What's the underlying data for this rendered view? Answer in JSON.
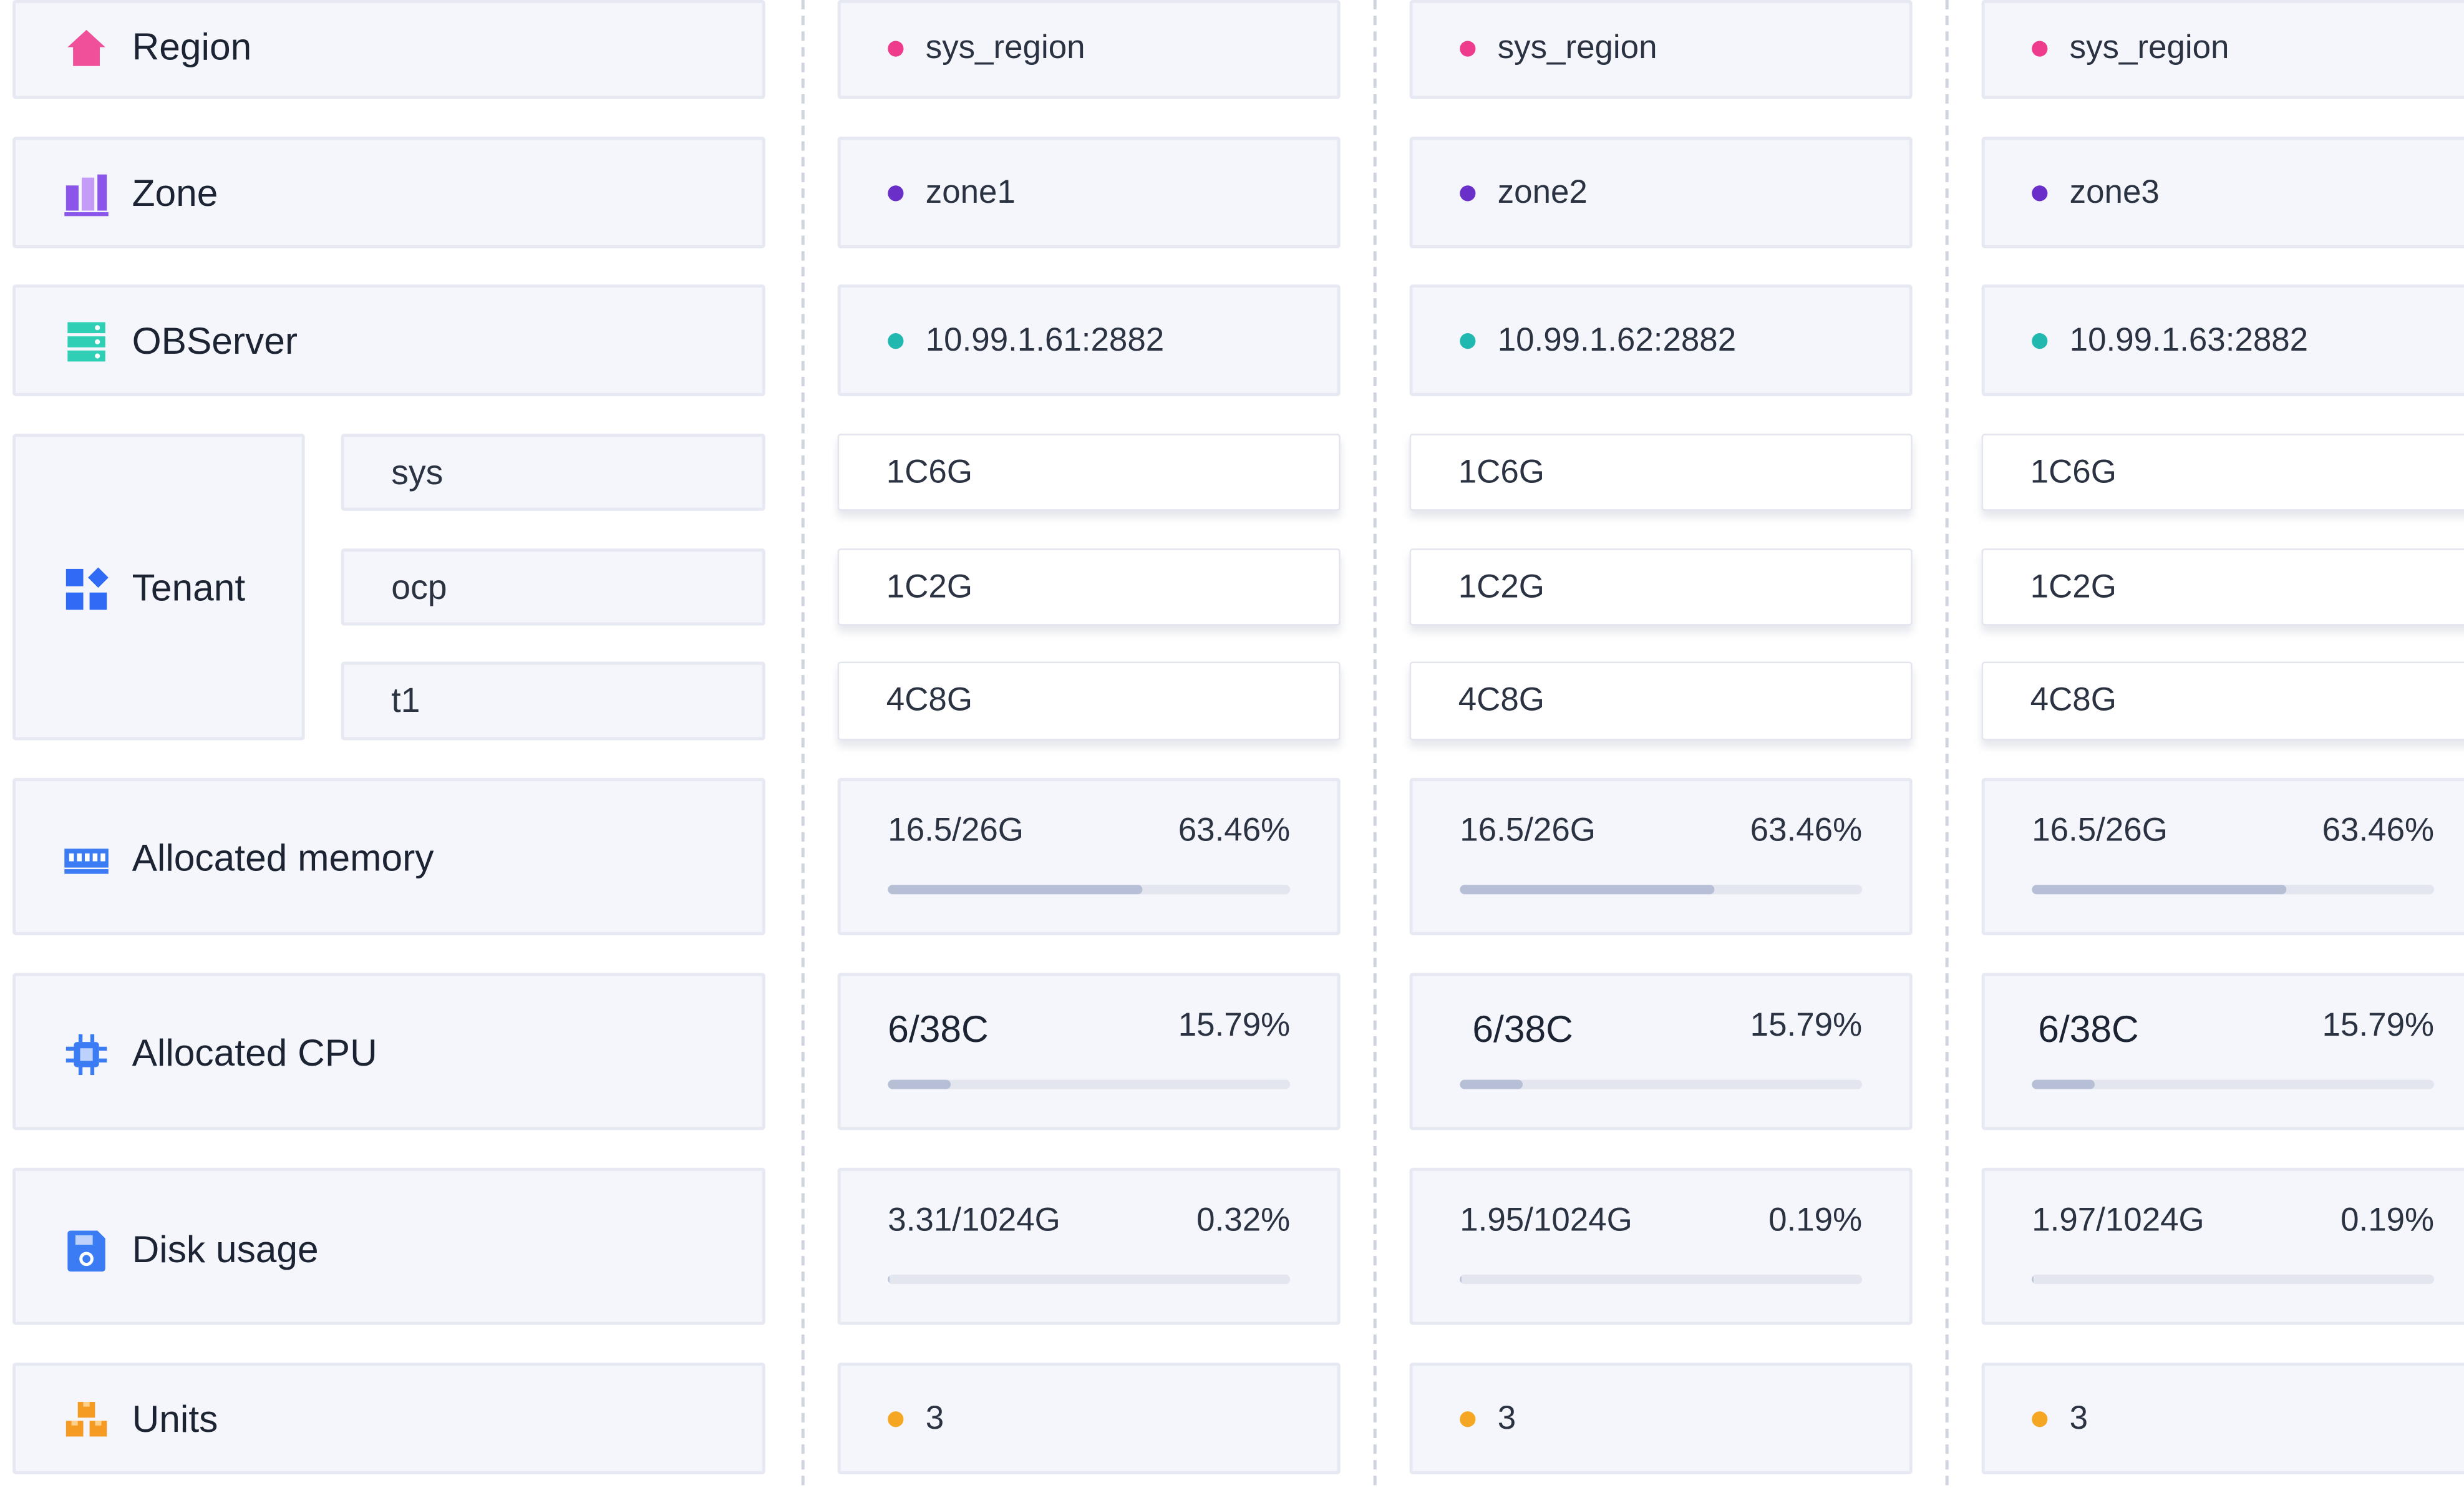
{
  "colors": {
    "region_dot": "#ee3b8c",
    "zone_dot": "#6a2fc9",
    "observer_dot": "#21b8b0",
    "units_dot": "#f5a623",
    "bar_fill": "#b7bfd6",
    "bar_track": "#e3e6ee",
    "card_bg": "#f4f6fc",
    "region_icon": "#f0509a",
    "zone_icon": "#8a55e8",
    "observer_icon": "#2fcfb6",
    "tenant_icon": "#2f6bf5",
    "memory_icon": "#3b7cf5",
    "cpu_icon": "#3b7cf5",
    "disk_icon": "#3b7cf5",
    "units_icon": "#f59a23"
  },
  "labels": {
    "region": {
      "text": "Region",
      "icon": "house-icon"
    },
    "zone": {
      "text": "Zone",
      "icon": "bar-chart-icon"
    },
    "observer": {
      "text": "OBServer",
      "icon": "server-icon"
    },
    "tenant": {
      "text": "Tenant",
      "icon": "grid-apps-icon"
    },
    "memory": {
      "text": "Allocated memory",
      "icon": "memory-icon"
    },
    "cpu": {
      "text": "Allocated CPU",
      "icon": "cpu-chip-icon"
    },
    "disk": {
      "text": "Disk usage",
      "icon": "disk-icon"
    },
    "units": {
      "text": "Units",
      "icon": "boxes-icon"
    }
  },
  "tenants": [
    "sys",
    "ocp",
    "t1"
  ],
  "zones": [
    {
      "region": "sys_region",
      "zone": "zone1",
      "observer": "10.99.1.61:2882",
      "tenant_specs": [
        "1C6G",
        "1C2G",
        "4C8G"
      ],
      "memory": {
        "text": "16.5/26G",
        "percent": "63.46%",
        "fraction": 0.6346
      },
      "cpu": {
        "text": "6/38C",
        "percent": "15.79%",
        "fraction": 0.1579
      },
      "disk": {
        "text": "3.31/1024G",
        "percent": "0.32%",
        "fraction": 0.0032
      },
      "units": "3"
    },
    {
      "region": "sys_region",
      "zone": "zone2",
      "observer": "10.99.1.62:2882",
      "tenant_specs": [
        "1C6G",
        "1C2G",
        "4C8G"
      ],
      "memory": {
        "text": "16.5/26G",
        "percent": "63.46%",
        "fraction": 0.6346
      },
      "cpu": {
        "text": "6/38C",
        "percent": "15.79%",
        "fraction": 0.1579
      },
      "disk": {
        "text": "1.95/1024G",
        "percent": "0.19%",
        "fraction": 0.0019
      },
      "units": "3"
    },
    {
      "region": "sys_region",
      "zone": "zone3",
      "observer": "10.99.1.63:2882",
      "tenant_specs": [
        "1C6G",
        "1C2G",
        "4C8G"
      ],
      "memory": {
        "text": "16.5/26G",
        "percent": "63.46%",
        "fraction": 0.6346
      },
      "cpu": {
        "text": "6/38C",
        "percent": "15.79%",
        "fraction": 0.1579
      },
      "disk": {
        "text": "1.97/1024G",
        "percent": "0.19%",
        "fraction": 0.0019
      },
      "units": "3"
    }
  ]
}
